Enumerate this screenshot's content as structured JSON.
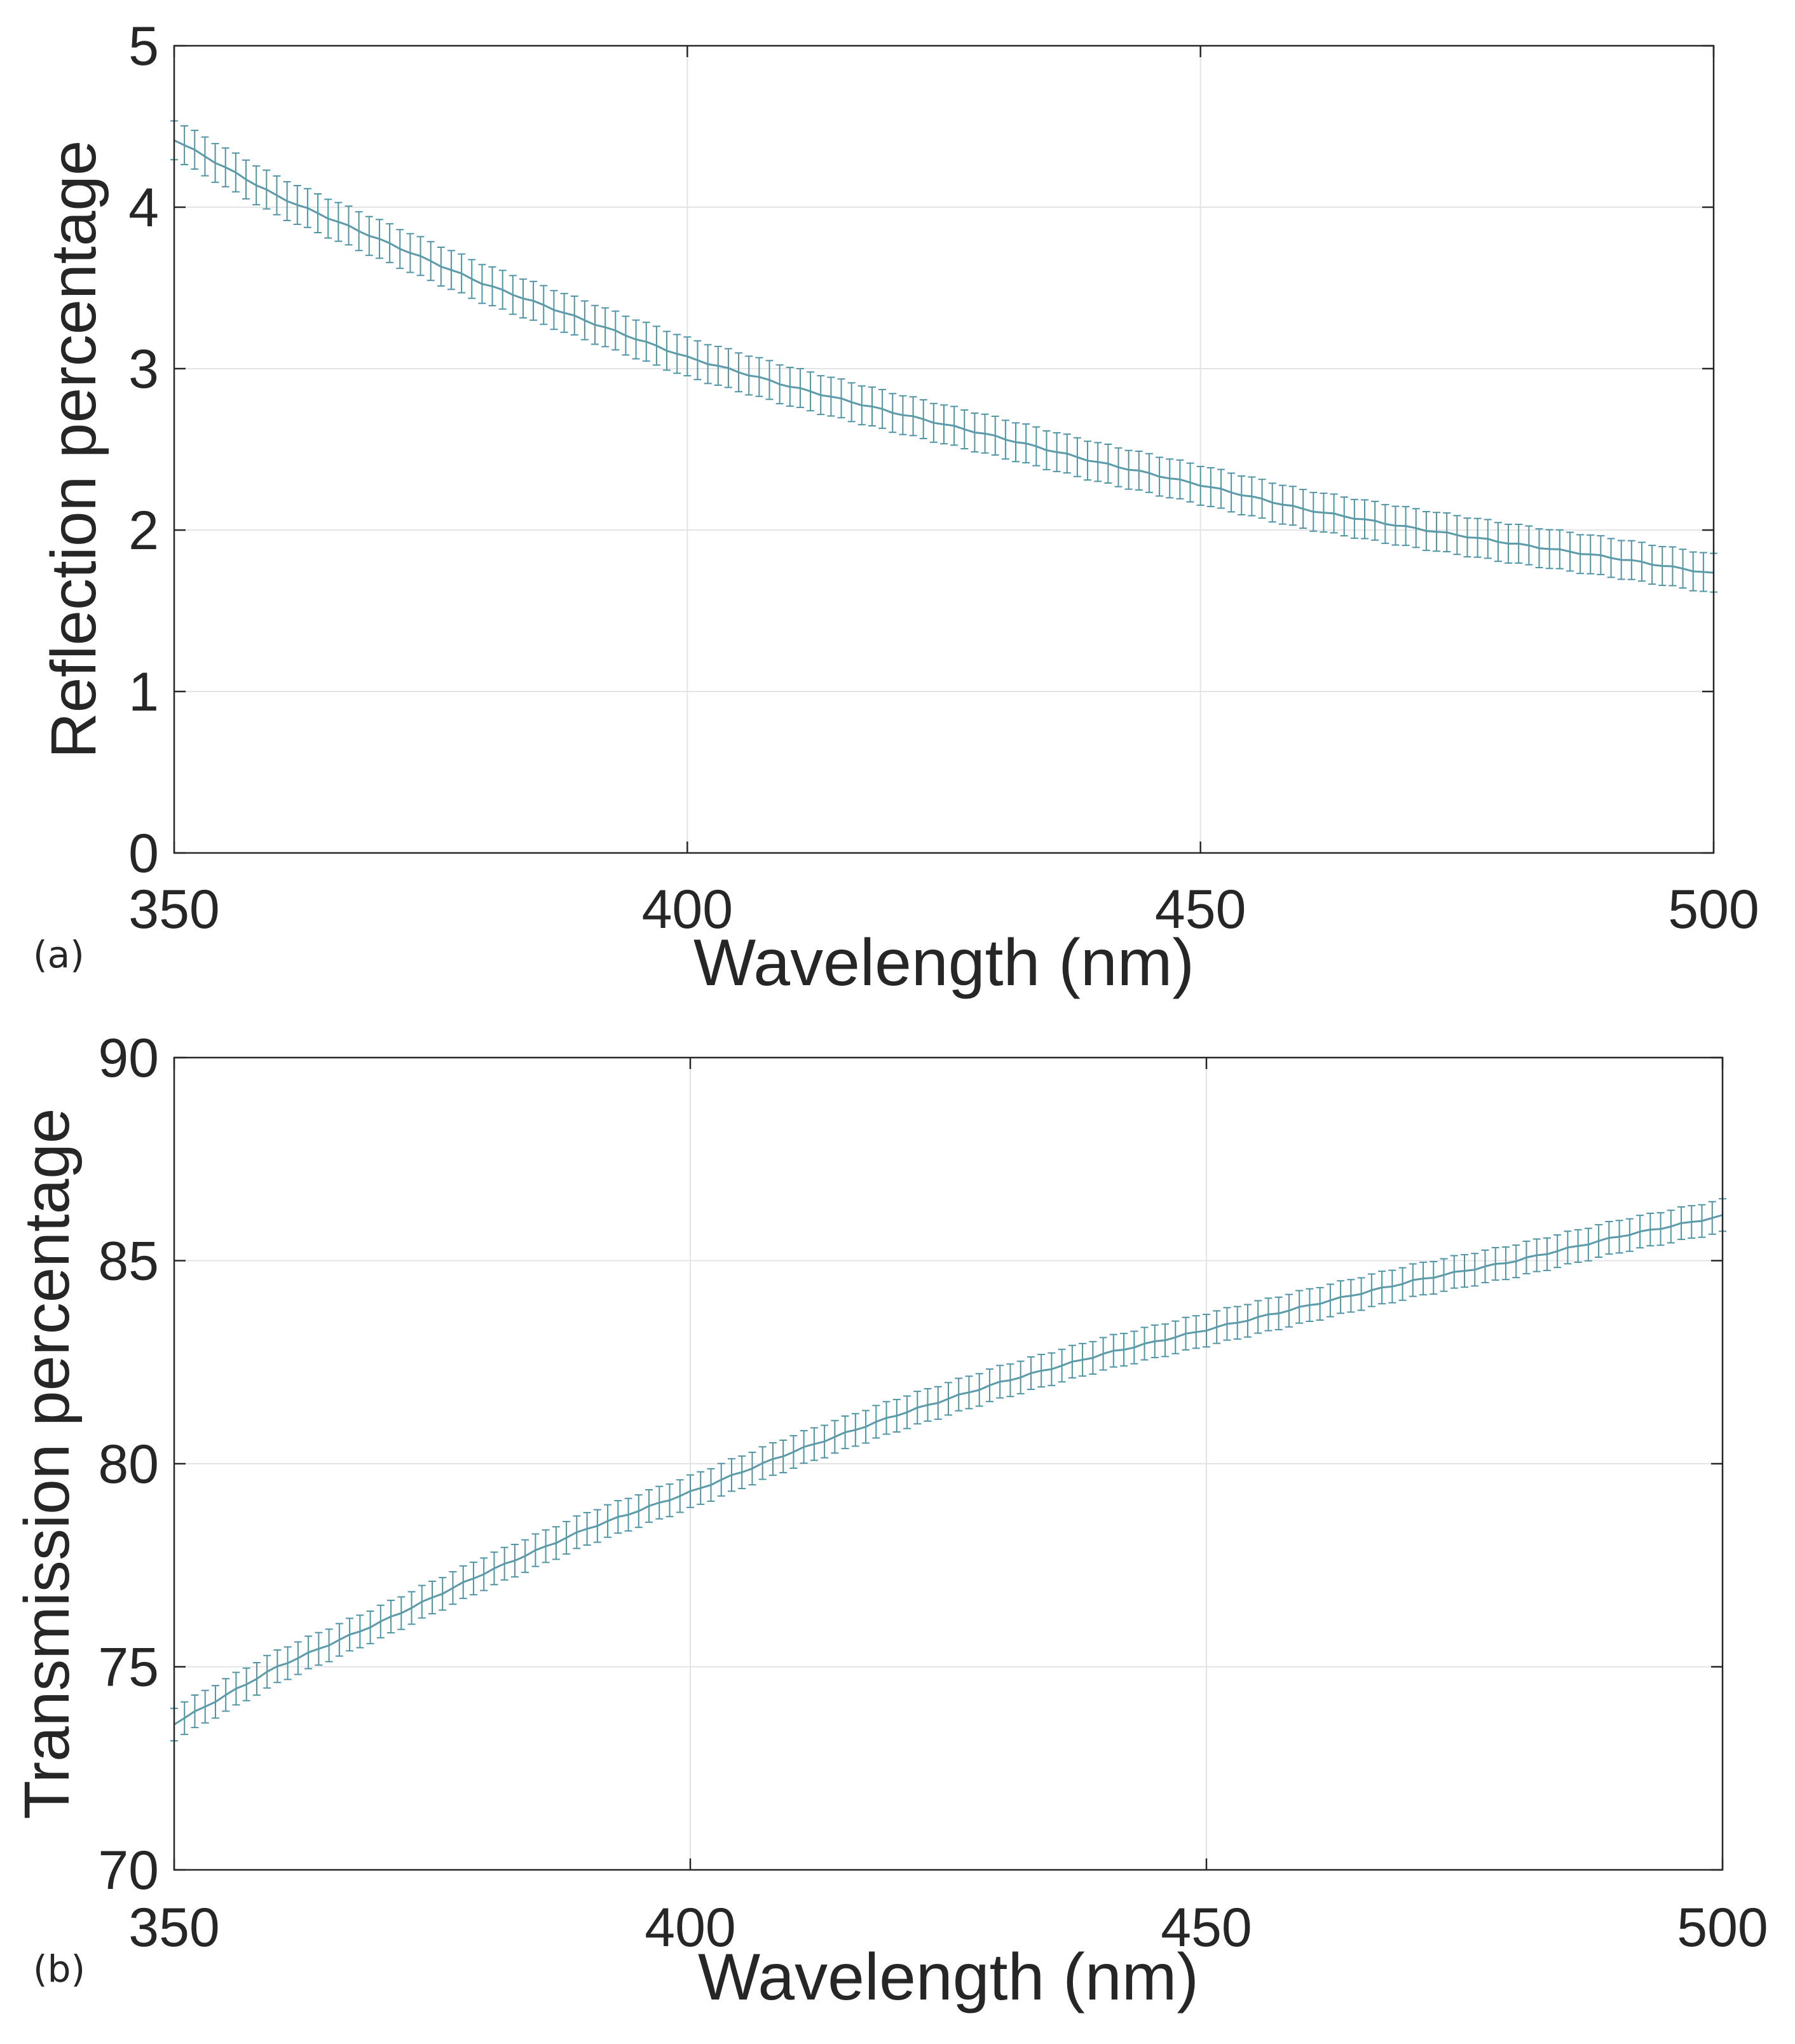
{
  "chart_data": [
    {
      "type": "line",
      "panel_label": "(a)",
      "title": "",
      "xlabel": "Wavelength (nm)",
      "ylabel": "Reflection percentage",
      "xlim": [
        350,
        500
      ],
      "ylim": [
        0,
        5
      ],
      "xticks": [
        "350",
        "400",
        "450",
        "500"
      ],
      "yticks": [
        "0",
        "1",
        "2",
        "3",
        "4",
        "5"
      ],
      "grid": true,
      "legend": "none",
      "line_color": "#5b9aa8",
      "error_bar_color": "#4f95a6",
      "error_bars": true,
      "x_start": 350,
      "x_step": 1,
      "y_control": {
        "x": [
          350,
          360,
          370,
          380,
          390,
          400,
          410,
          420,
          430,
          440,
          450,
          460,
          470,
          480,
          490,
          500
        ],
        "y": [
          4.42,
          4.07,
          3.8,
          3.53,
          3.3,
          3.07,
          2.89,
          2.73,
          2.58,
          2.42,
          2.28,
          2.13,
          2.02,
          1.92,
          1.83,
          1.73
        ]
      },
      "error_halfwidth": 0.12
    },
    {
      "type": "line",
      "panel_label": "(b)",
      "title": "",
      "xlabel": "Wavelength (nm)",
      "ylabel": "Transmission percentage",
      "xlim": [
        350,
        500
      ],
      "ylim": [
        70,
        90
      ],
      "xticks": [
        "350",
        "400",
        "450",
        "500"
      ],
      "yticks": [
        "70",
        "75",
        "80",
        "85",
        "90"
      ],
      "grid": true,
      "legend": "none",
      "line_color": "#5b9aa8",
      "error_bar_color": "#4f95a6",
      "error_bars": true,
      "x_start": 350,
      "x_step": 1,
      "y_control": {
        "x": [
          350,
          360,
          370,
          380,
          390,
          400,
          410,
          420,
          430,
          440,
          450,
          460,
          470,
          480,
          490,
          500
        ],
        "y": [
          73.6,
          75.0,
          76.1,
          77.3,
          78.4,
          79.3,
          80.3,
          81.2,
          82.0,
          82.7,
          83.3,
          83.9,
          84.5,
          85.0,
          85.6,
          86.1
        ]
      },
      "error_halfwidth": 0.4
    }
  ]
}
